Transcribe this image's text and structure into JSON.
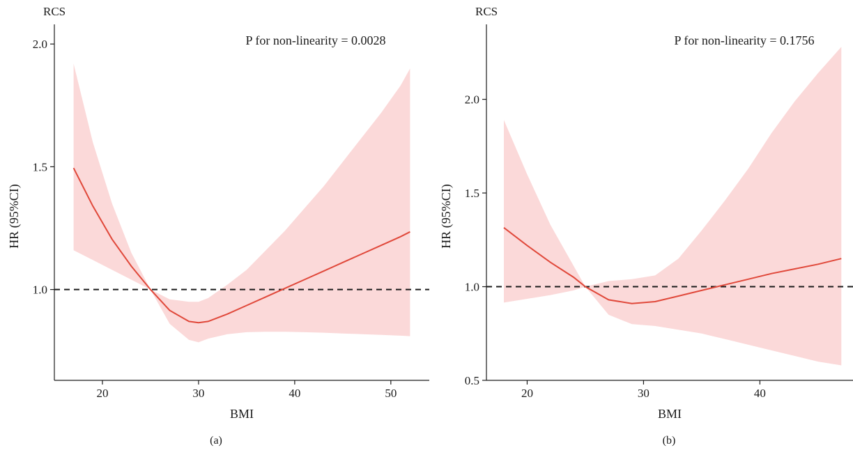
{
  "colors": {
    "curve": "#e0483a",
    "band": "#fbd9d9",
    "reference_line": "#1a1a1a",
    "axis": "#1a1a1a"
  },
  "chart_data": [
    {
      "type": "line",
      "panel_label": "(a)",
      "corner_label": "RCS",
      "annotation": "P for non-linearity = 0.0028",
      "xlabel": "BMI",
      "ylabel": "HR (95%CI)",
      "xlim": [
        15,
        54
      ],
      "ylim": [
        0.63,
        2.08
      ],
      "xticks": [
        20,
        30,
        40,
        50
      ],
      "yticks": [
        1.0,
        1.5,
        2.0
      ],
      "ytick_labels": [
        "1.0",
        "1.5",
        "2.0"
      ],
      "reference_line_y": 1.0,
      "series": [
        {
          "x": [
            17,
            19,
            21,
            23,
            25,
            27,
            29,
            30,
            31,
            33,
            35,
            37,
            39,
            41,
            43,
            45,
            47,
            49,
            51,
            52
          ],
          "values": [
            1.495,
            1.34,
            1.205,
            1.095,
            1.0,
            0.915,
            0.87,
            0.865,
            0.87,
            0.9,
            0.935,
            0.97,
            1.005,
            1.04,
            1.075,
            1.11,
            1.145,
            1.18,
            1.215,
            1.235
          ],
          "lower": [
            1.16,
            1.12,
            1.08,
            1.04,
            1.0,
            0.86,
            0.795,
            0.785,
            0.8,
            0.818,
            0.826,
            0.828,
            0.828,
            0.826,
            0.824,
            0.821,
            0.818,
            0.815,
            0.812,
            0.81
          ],
          "upper": [
            1.92,
            1.6,
            1.35,
            1.15,
            1.0,
            0.96,
            0.95,
            0.95,
            0.965,
            1.02,
            1.08,
            1.16,
            1.24,
            1.33,
            1.42,
            1.52,
            1.62,
            1.72,
            1.83,
            1.9
          ]
        }
      ]
    },
    {
      "type": "line",
      "panel_label": "(b)",
      "corner_label": "RCS",
      "annotation": "P for non-linearity = 0.1756",
      "xlabel": "BMI",
      "ylabel": "HR (95%CI)",
      "xlim": [
        16.5,
        48
      ],
      "ylim": [
        0.5,
        2.4
      ],
      "xticks": [
        20,
        30,
        40
      ],
      "yticks": [
        0.5,
        1.0,
        1.5,
        2.0
      ],
      "ytick_labels": [
        "0.5",
        "1.0",
        "1.5",
        "2.0"
      ],
      "reference_line_y": 1.0,
      "series": [
        {
          "x": [
            18,
            20,
            22,
            24,
            25,
            27,
            29,
            31,
            33,
            35,
            37,
            39,
            41,
            43,
            45,
            47
          ],
          "values": [
            1.315,
            1.22,
            1.13,
            1.05,
            1.0,
            0.93,
            0.91,
            0.92,
            0.95,
            0.98,
            1.01,
            1.04,
            1.07,
            1.095,
            1.12,
            1.15
          ],
          "lower": [
            0.915,
            0.935,
            0.955,
            0.98,
            1.0,
            0.85,
            0.8,
            0.79,
            0.77,
            0.75,
            0.72,
            0.69,
            0.66,
            0.63,
            0.6,
            0.58
          ],
          "upper": [
            1.89,
            1.6,
            1.33,
            1.11,
            1.0,
            1.03,
            1.04,
            1.06,
            1.15,
            1.3,
            1.46,
            1.63,
            1.82,
            1.99,
            2.14,
            2.28
          ]
        }
      ]
    }
  ]
}
